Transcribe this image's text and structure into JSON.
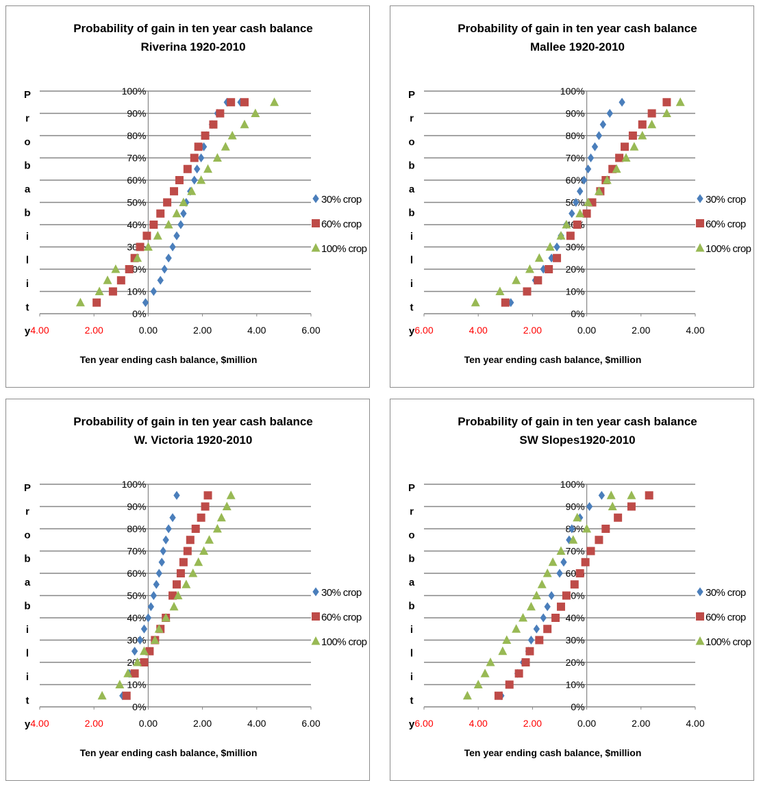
{
  "chart_data": [
    {
      "type": "scatter",
      "title": "Probability of gain in ten year cash balance",
      "subtitle": "Riverina 1920-2010",
      "xlabel": "Ten year ending cash balance, $million",
      "ylabel": "Probability",
      "x_tick_labels": [
        "4.00",
        "2.00",
        "0.00",
        "2.00",
        "4.00",
        "6.00"
      ],
      "xlim": [
        -4,
        6
      ],
      "ylim": [
        0,
        100
      ],
      "y_tick_labels": [
        "0%",
        "10%",
        "20%",
        "30%",
        "40%",
        "50%",
        "60%",
        "70%",
        "80%",
        "90%",
        "100%"
      ],
      "legend_position": "right",
      "series": [
        {
          "name": "30% crop",
          "color": "#4a7ebb",
          "marker": "diamond",
          "x": [
            -0.1,
            0.2,
            0.45,
            0.6,
            0.75,
            0.9,
            1.05,
            1.2,
            1.3,
            1.4,
            1.55,
            1.7,
            1.8,
            1.95,
            2.05,
            2.15,
            2.35,
            2.55,
            2.9,
            3.4
          ],
          "y": [
            5,
            10,
            15,
            20,
            25,
            30,
            35,
            40,
            45,
            50,
            55,
            60,
            65,
            70,
            75,
            80,
            85,
            90,
            95,
            95
          ]
        },
        {
          "name": "60% crop",
          "color": "#be4b48",
          "marker": "square",
          "x": [
            -1.9,
            -1.3,
            -1.0,
            -0.7,
            -0.5,
            -0.3,
            -0.05,
            0.2,
            0.45,
            0.7,
            0.95,
            1.15,
            1.45,
            1.7,
            1.85,
            2.1,
            2.4,
            2.65,
            3.05,
            3.55
          ],
          "y": [
            5,
            10,
            15,
            20,
            25,
            30,
            35,
            40,
            45,
            50,
            55,
            60,
            65,
            70,
            75,
            80,
            85,
            90,
            95,
            95
          ]
        },
        {
          "name": "100% crop",
          "color": "#98b954",
          "marker": "triangle",
          "x": [
            -2.5,
            -1.8,
            -1.5,
            -1.2,
            -0.4,
            0.0,
            0.35,
            0.75,
            1.05,
            1.3,
            1.6,
            1.95,
            2.2,
            2.55,
            2.85,
            3.1,
            3.55,
            3.95,
            4.65
          ],
          "y": [
            5,
            10,
            15,
            20,
            25,
            30,
            35,
            40,
            45,
            50,
            55,
            60,
            65,
            70,
            75,
            80,
            85,
            90,
            95
          ]
        }
      ]
    },
    {
      "type": "scatter",
      "title": "Probability of gain in ten year cash balance",
      "subtitle": "Mallee 1920-2010",
      "xlabel": "Ten year ending cash balance, $million",
      "ylabel": "Probability",
      "x_tick_labels": [
        "6.00",
        "4.00",
        "2.00",
        "0.00",
        "2.00",
        "4.00"
      ],
      "xlim": [
        -6,
        4
      ],
      "ylim": [
        0,
        100
      ],
      "y_tick_labels": [
        "0%",
        "10%",
        "20%",
        "30%",
        "40%",
        "50%",
        "60%",
        "70%",
        "80%",
        "90%",
        "100%"
      ],
      "legend_position": "right",
      "series": [
        {
          "name": "30% crop",
          "color": "#4a7ebb",
          "marker": "diamond",
          "x": [
            -2.8,
            -1.9,
            -1.6,
            -1.3,
            -1.1,
            -0.95,
            -0.75,
            -0.55,
            -0.4,
            -0.25,
            -0.1,
            0.05,
            0.15,
            0.3,
            0.45,
            0.6,
            0.85,
            1.3
          ],
          "y": [
            5,
            15,
            20,
            25,
            30,
            35,
            40,
            45,
            50,
            55,
            60,
            65,
            70,
            75,
            80,
            85,
            90,
            95
          ]
        },
        {
          "name": "60% crop",
          "color": "#be4b48",
          "marker": "square",
          "x": [
            -3.0,
            -2.2,
            -1.8,
            -1.4,
            -1.1,
            -0.6,
            -0.35,
            0.0,
            0.2,
            0.5,
            0.7,
            0.95,
            1.2,
            1.4,
            1.7,
            2.05,
            2.4,
            2.95
          ],
          "y": [
            5,
            10,
            15,
            20,
            25,
            35,
            40,
            45,
            50,
            55,
            60,
            65,
            70,
            75,
            80,
            85,
            90,
            95
          ]
        },
        {
          "name": "100% crop",
          "color": "#98b954",
          "marker": "triangle",
          "x": [
            -4.1,
            -3.2,
            -2.6,
            -2.1,
            -1.75,
            -1.35,
            -0.95,
            -0.75,
            -0.25,
            0.05,
            0.45,
            0.75,
            1.1,
            1.45,
            1.75,
            2.05,
            2.4,
            2.95,
            3.45
          ],
          "y": [
            5,
            10,
            15,
            20,
            25,
            30,
            35,
            40,
            45,
            50,
            55,
            60,
            65,
            70,
            75,
            80,
            85,
            90,
            95
          ]
        }
      ]
    },
    {
      "type": "scatter",
      "title": "Probability of gain in ten year cash balance",
      "subtitle": "W. Victoria 1920-2010",
      "xlabel": "Ten year ending cash balance, $million",
      "ylabel": "Probability",
      "x_tick_labels": [
        "4.00",
        "2.00",
        "0.00",
        "2.00",
        "4.00",
        "6.00"
      ],
      "xlim": [
        -4,
        6
      ],
      "ylim": [
        0,
        100
      ],
      "y_tick_labels": [
        "0%",
        "10%",
        "20%",
        "30%",
        "40%",
        "50%",
        "60%",
        "70%",
        "80%",
        "90%",
        "100%"
      ],
      "legend_position": "right",
      "series": [
        {
          "name": "30% crop",
          "color": "#4a7ebb",
          "marker": "diamond",
          "x": [
            -0.95,
            -0.7,
            -0.5,
            -0.3,
            -0.15,
            0.0,
            0.1,
            0.2,
            0.3,
            0.4,
            0.5,
            0.55,
            0.65,
            0.75,
            0.9,
            1.05
          ],
          "y": [
            5,
            15,
            25,
            30,
            35,
            40,
            45,
            50,
            55,
            60,
            65,
            70,
            75,
            80,
            85,
            95
          ]
        },
        {
          "name": "60% crop",
          "color": "#be4b48",
          "marker": "square",
          "x": [
            -0.8,
            -0.5,
            -0.15,
            0.05,
            0.25,
            0.45,
            0.65,
            0.9,
            1.05,
            1.2,
            1.3,
            1.45,
            1.55,
            1.75,
            1.95,
            2.1,
            2.2
          ],
          "y": [
            5,
            15,
            20,
            25,
            30,
            35,
            40,
            50,
            55,
            60,
            65,
            70,
            75,
            80,
            85,
            90,
            95
          ]
        },
        {
          "name": "100% crop",
          "color": "#98b954",
          "marker": "triangle",
          "x": [
            -1.7,
            -1.05,
            -0.75,
            -0.4,
            -0.15,
            0.25,
            0.4,
            0.65,
            0.95,
            1.1,
            1.4,
            1.65,
            1.85,
            2.05,
            2.25,
            2.55,
            2.7,
            2.9,
            3.05
          ],
          "y": [
            5,
            10,
            15,
            20,
            25,
            30,
            35,
            40,
            45,
            50,
            55,
            60,
            65,
            70,
            75,
            80,
            85,
            90,
            95
          ]
        }
      ]
    },
    {
      "type": "scatter",
      "title": "Probability of gain in ten year cash balance",
      "subtitle": "SW Slopes1920-2010",
      "xlabel": "Ten year ending cash balance, $million",
      "ylabel": "Probability",
      "x_tick_labels": [
        "6.00",
        "4.00",
        "2.00",
        "0.00",
        "2.00",
        "4.00"
      ],
      "xlim": [
        -6,
        4
      ],
      "ylim": [
        0,
        100
      ],
      "y_tick_labels": [
        "0%",
        "10%",
        "20%",
        "30%",
        "40%",
        "50%",
        "60%",
        "70%",
        "80%",
        "90%",
        "100%"
      ],
      "legend_position": "right",
      "series": [
        {
          "name": "30% crop",
          "color": "#4a7ebb",
          "marker": "diamond",
          "x": [
            -3.15,
            -2.55,
            -2.35,
            -2.15,
            -2.05,
            -1.85,
            -1.6,
            -1.45,
            -1.3,
            -1.0,
            -0.85,
            -0.65,
            -0.55,
            -0.25,
            0.1,
            0.55
          ],
          "y": [
            5,
            15,
            20,
            25,
            30,
            35,
            40,
            45,
            50,
            60,
            65,
            75,
            80,
            85,
            90,
            95
          ]
        },
        {
          "name": "60% crop",
          "color": "#be4b48",
          "marker": "square",
          "x": [
            -3.25,
            -2.85,
            -2.5,
            -2.25,
            -2.1,
            -1.75,
            -1.45,
            -1.15,
            -0.95,
            -0.75,
            -0.45,
            -0.25,
            -0.05,
            0.15,
            0.45,
            0.7,
            1.15,
            1.65,
            2.3
          ],
          "y": [
            5,
            10,
            15,
            20,
            25,
            30,
            35,
            40,
            45,
            50,
            55,
            60,
            65,
            70,
            75,
            80,
            85,
            90,
            95
          ]
        },
        {
          "name": "100% crop",
          "color": "#98b954",
          "marker": "triangle",
          "x": [
            -4.4,
            -4.0,
            -3.75,
            -3.55,
            -3.1,
            -2.95,
            -2.6,
            -2.35,
            -2.05,
            -1.85,
            -1.65,
            -1.45,
            -1.25,
            -0.95,
            -0.5,
            -0.35,
            0.0,
            0.95,
            0.9,
            1.65
          ],
          "y": [
            5,
            10,
            15,
            20,
            25,
            30,
            35,
            40,
            45,
            50,
            55,
            60,
            65,
            70,
            75,
            85,
            80,
            90,
            95,
            95
          ]
        }
      ]
    }
  ]
}
